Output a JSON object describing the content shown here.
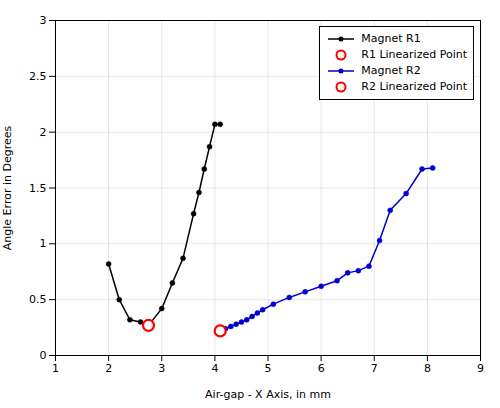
{
  "chart_data": {
    "type": "line",
    "xlabel": "Air-gap - X Axis, in mm",
    "ylabel": "Angle Error in Degrees",
    "xlim": [
      1,
      9
    ],
    "ylim": [
      0,
      3
    ],
    "xticks": [
      1,
      2,
      3,
      4,
      5,
      6,
      7,
      8,
      9
    ],
    "yticks": [
      0,
      0.5,
      1,
      1.5,
      2,
      2.5,
      3
    ],
    "grid": true,
    "legend": "upper right",
    "series": [
      {
        "name": "Magnet R1",
        "type": "line",
        "color": "#000000",
        "marker": "circle",
        "x": [
          2.0,
          2.2,
          2.4,
          2.6,
          2.75,
          3.0,
          3.2,
          3.4,
          3.6,
          3.7,
          3.8,
          3.9,
          4.0,
          4.1
        ],
        "values": [
          0.82,
          0.5,
          0.32,
          0.3,
          0.27,
          0.42,
          0.65,
          0.87,
          1.27,
          1.46,
          1.67,
          1.87,
          2.07,
          2.07
        ]
      },
      {
        "name": "R1 Linearized Point",
        "type": "scatter",
        "color": "#ff0000",
        "marker": "open circle",
        "x": [
          2.75
        ],
        "values": [
          0.27
        ]
      },
      {
        "name": "Magnet R2",
        "type": "line",
        "color": "#0000cc",
        "marker": "circle",
        "x": [
          4.1,
          4.2,
          4.3,
          4.4,
          4.5,
          4.6,
          4.7,
          4.8,
          4.9,
          5.1,
          5.4,
          5.7,
          6.0,
          6.3,
          6.5,
          6.7,
          6.9,
          7.1,
          7.3,
          7.6,
          7.9,
          8.1
        ],
        "values": [
          0.22,
          0.24,
          0.26,
          0.28,
          0.3,
          0.32,
          0.35,
          0.38,
          0.41,
          0.46,
          0.52,
          0.57,
          0.62,
          0.67,
          0.74,
          0.76,
          0.8,
          1.03,
          1.3,
          1.45,
          1.67,
          1.68
        ]
      },
      {
        "name": "R2 Linearized Point",
        "type": "scatter",
        "color": "#ff0000",
        "marker": "open circle",
        "x": [
          4.1
        ],
        "values": [
          0.22
        ]
      }
    ]
  }
}
